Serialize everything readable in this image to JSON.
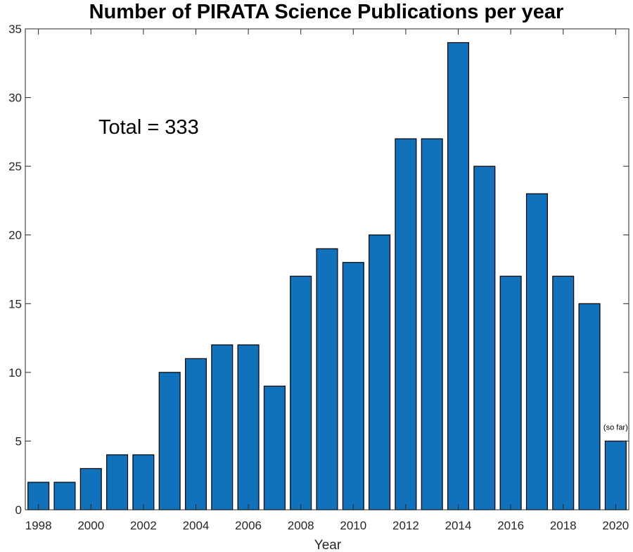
{
  "chart_data": {
    "type": "bar",
    "title": "Number of PIRATA Science Publications per year",
    "xlabel": "Year",
    "ylabel": "",
    "categories": [
      1998,
      1999,
      2000,
      2001,
      2002,
      2003,
      2004,
      2005,
      2006,
      2007,
      2008,
      2009,
      2010,
      2011,
      2012,
      2013,
      2014,
      2015,
      2016,
      2017,
      2018,
      2019,
      2020
    ],
    "values": [
      2,
      2,
      3,
      4,
      4,
      10,
      11,
      12,
      12,
      9,
      17,
      19,
      18,
      20,
      27,
      27,
      34,
      25,
      17,
      23,
      17,
      15,
      5
    ],
    "xticks": [
      "1998",
      "2000",
      "2002",
      "2004",
      "2006",
      "2008",
      "2010",
      "2012",
      "2014",
      "2016",
      "2018",
      "2020"
    ],
    "yticks": [
      "0",
      "5",
      "10",
      "15",
      "20",
      "25",
      "30",
      "35"
    ],
    "ylim": [
      0,
      35
    ],
    "xlim": [
      1997.5,
      2020.5
    ],
    "grid": false,
    "bar_color": "#1171BA",
    "annotations": [
      {
        "text": "Total = 333"
      },
      {
        "text": "(so far)",
        "year": 2020
      }
    ]
  }
}
